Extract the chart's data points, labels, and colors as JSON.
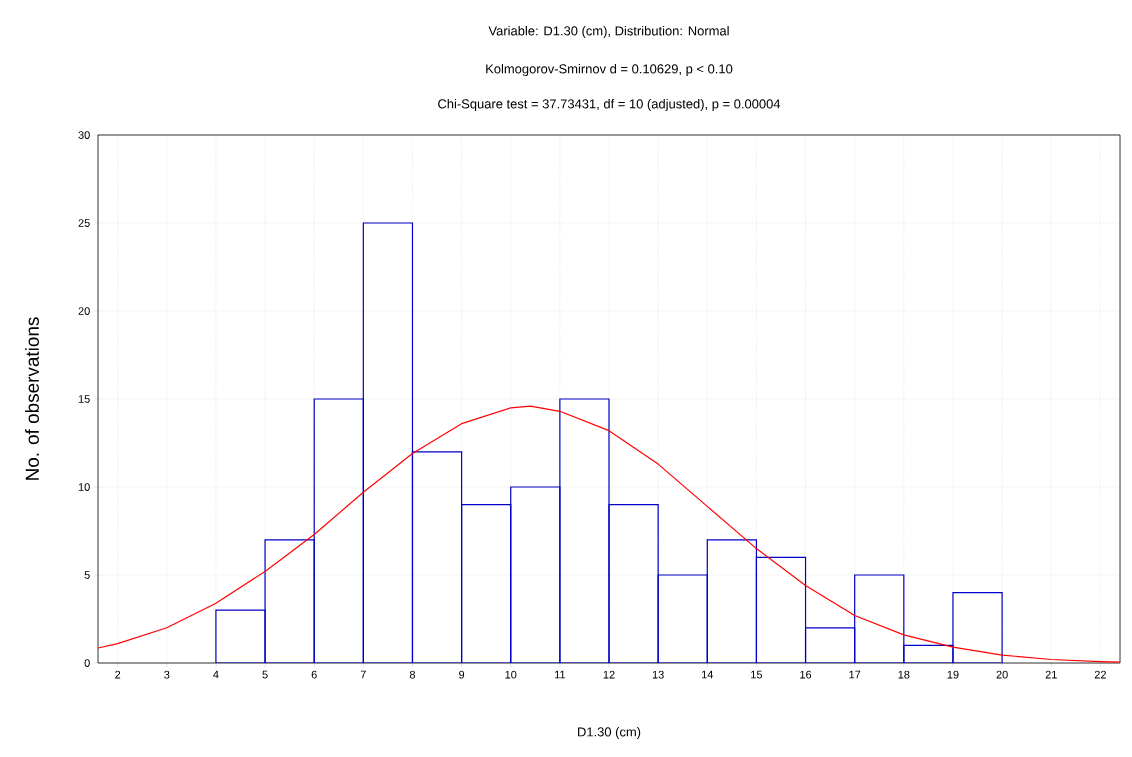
{
  "chart_data": {
    "type": "histogram",
    "title": "Variable: D1.30 (cm), Distribution: Normal",
    "subtitle": "Kolmogorov-Smirnov d = 0.10629, p < 0.10",
    "annotations": [
      "Chi-Square test = 37.73431, df = 10 (adjusted), p = 0.00004"
    ],
    "xlabel": "D1.30 (cm)",
    "ylabel": "No. of observations",
    "bins": [
      4,
      5,
      6,
      7,
      8,
      9,
      10,
      11,
      12,
      13,
      14,
      15,
      16,
      17,
      18,
      19,
      20
    ],
    "series": [
      {
        "type": "histogram",
        "color": "#0000c8",
        "values": [
          3,
          7,
          15,
          25,
          12,
          9,
          10,
          15,
          9,
          5,
          7,
          6,
          2,
          5,
          1,
          4
        ]
      },
      {
        "type": "line",
        "color": "#ff0000",
        "x": [
          1.6,
          2,
          3,
          4,
          5,
          6,
          7,
          8,
          9,
          10,
          10.4,
          11,
          12,
          13,
          14,
          15,
          16,
          17,
          18,
          19,
          20,
          21,
          22,
          22.4
        ],
        "values": [
          0.85,
          1.1,
          2.0,
          3.4,
          5.2,
          7.3,
          9.7,
          11.9,
          13.6,
          14.5,
          14.6,
          14.3,
          13.2,
          11.3,
          8.9,
          6.5,
          4.4,
          2.7,
          1.6,
          0.9,
          0.45,
          0.2,
          0.08,
          0.05
        ]
      }
    ],
    "xlim": [
      1.6,
      22.4
    ],
    "ylim": [
      0,
      30
    ],
    "xticks": [
      2,
      3,
      4,
      5,
      6,
      7,
      8,
      9,
      10,
      11,
      12,
      13,
      14,
      15,
      16,
      17,
      18,
      19,
      20,
      21,
      22
    ],
    "yticks": [
      0,
      5,
      10,
      15,
      20,
      25,
      30
    ],
    "grid": true
  }
}
